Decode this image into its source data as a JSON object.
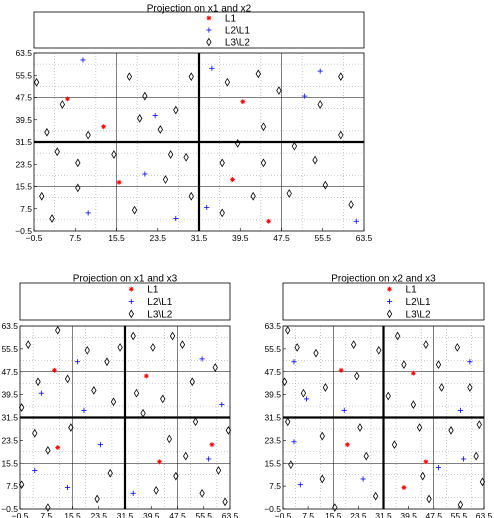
{
  "colors": {
    "L1": "#ff0000",
    "L2\\L1": "#0000ff",
    "L3\\L2": "#000000"
  },
  "chart_data": [
    {
      "type": "scatter",
      "title": "Projection on x1 and x2",
      "xlim": [
        -0.5,
        63.5
      ],
      "ylim": [
        -0.5,
        63.5
      ],
      "xticks": [
        "−0.5",
        "7.5",
        "15.5",
        "23.5",
        "31.5",
        "39.5",
        "47.5",
        "55.5",
        "63.5"
      ],
      "yticks": [
        "−0.5",
        "7.5",
        "15.5",
        "23.5",
        "31.5",
        "39.5",
        "47.5",
        "55.5",
        "63.5"
      ],
      "grid": true,
      "legend": {
        "position": "top",
        "entries": [
          "L1",
          "L2\\L1",
          "L3\\L2"
        ]
      },
      "series": [
        {
          "name": "L1",
          "marker": "asterisk",
          "points": [
            [
              13,
              37
            ],
            [
              16,
              17
            ],
            [
              6,
              47
            ],
            [
              40,
              46
            ],
            [
              38,
              18
            ],
            [
              45,
              3
            ]
          ]
        },
        {
          "name": "L2\\L1",
          "marker": "plus",
          "points": [
            [
              9,
              61
            ],
            [
              21,
              20
            ],
            [
              10,
              6
            ],
            [
              27,
              4
            ],
            [
              34,
              58
            ],
            [
              33,
              8
            ],
            [
              55,
              57
            ],
            [
              62,
              3
            ],
            [
              52,
              48
            ],
            [
              23,
              41
            ]
          ]
        },
        {
          "name": "L3\\L2",
          "marker": "diamond",
          "points": [
            [
              0,
              53
            ],
            [
              5,
              45
            ],
            [
              2,
              35
            ],
            [
              4,
              28
            ],
            [
              1,
              12
            ],
            [
              3,
              4
            ],
            [
              8,
              15
            ],
            [
              10,
              34
            ],
            [
              8,
              24
            ],
            [
              18,
              55
            ],
            [
              20,
              40
            ],
            [
              21,
              48
            ],
            [
              24,
              36
            ],
            [
              27,
              43
            ],
            [
              26,
              27
            ],
            [
              25,
              18
            ],
            [
              29,
              26
            ],
            [
              30,
              12
            ],
            [
              30,
              55
            ],
            [
              15,
              27
            ],
            [
              19,
              7
            ],
            [
              36,
              6
            ],
            [
              37,
              53
            ],
            [
              36,
              24
            ],
            [
              39,
              31
            ],
            [
              43,
              56
            ],
            [
              44,
              37
            ],
            [
              47,
              50
            ],
            [
              49,
              13
            ],
            [
              50,
              30
            ],
            [
              54,
              25
            ],
            [
              56,
              16
            ],
            [
              59,
              34
            ],
            [
              61,
              9
            ],
            [
              59,
              55
            ],
            [
              55,
              45
            ],
            [
              44,
              24
            ],
            [
              42,
              12
            ]
          ]
        }
      ]
    },
    {
      "type": "scatter",
      "title": "Projection on x1 and x3",
      "xlim": [
        -0.5,
        63.5
      ],
      "ylim": [
        -0.5,
        63.5
      ],
      "xticks": [
        "−0.5",
        "7.5",
        "15.5",
        "23.5",
        "31.5",
        "39.5",
        "47.5",
        "55.5",
        "63.5"
      ],
      "yticks": [
        "−0.5",
        "7.5",
        "15.5",
        "23.5",
        "31.5",
        "39.5",
        "47.5",
        "55.5",
        "63.5"
      ],
      "grid": true,
      "legend": {
        "position": "top",
        "entries": [
          "L1",
          "L2\\L1",
          "L3\\L2"
        ]
      },
      "series": [
        {
          "name": "L1",
          "marker": "asterisk",
          "points": [
            [
              10,
              48
            ],
            [
              38,
              46
            ],
            [
              42,
              16
            ],
            [
              11,
              21
            ],
            [
              58,
              22
            ]
          ]
        },
        {
          "name": "L2\\L1",
          "marker": "plus",
          "points": [
            [
              4,
              13
            ],
            [
              17,
              51
            ],
            [
              19,
              34
            ],
            [
              6,
              40
            ],
            [
              24,
              22
            ],
            [
              34,
              5
            ],
            [
              55,
              52
            ],
            [
              61,
              36
            ],
            [
              57,
              17
            ],
            [
              14,
              7
            ]
          ]
        },
        {
          "name": "L3\\L2",
          "marker": "diamond",
          "points": [
            [
              2,
              57
            ],
            [
              5,
              44
            ],
            [
              0,
              35
            ],
            [
              4,
              26
            ],
            [
              0,
              8
            ],
            [
              8,
              0
            ],
            [
              11,
              62
            ],
            [
              14,
              45
            ],
            [
              20,
              55
            ],
            [
              22,
              41
            ],
            [
              26,
              51
            ],
            [
              28,
              37
            ],
            [
              27,
              12
            ],
            [
              23,
              3
            ],
            [
              15,
              28
            ],
            [
              30,
              56
            ],
            [
              34,
              60
            ],
            [
              35,
              40
            ],
            [
              37,
              33
            ],
            [
              40,
              56
            ],
            [
              43,
              38
            ],
            [
              45,
              24
            ],
            [
              47,
              11
            ],
            [
              49,
              57
            ],
            [
              52,
              44
            ],
            [
              53,
              30
            ],
            [
              55,
              5
            ],
            [
              59,
              49
            ],
            [
              63,
              27
            ],
            [
              60,
              13
            ],
            [
              62,
              2
            ],
            [
              46,
              60
            ],
            [
              41,
              6
            ],
            [
              50,
              18
            ],
            [
              8,
              20
            ]
          ]
        }
      ]
    },
    {
      "type": "scatter",
      "title": "Projection on x2 and x3",
      "xlim": [
        -0.5,
        63.5
      ],
      "ylim": [
        -0.5,
        63.5
      ],
      "xticks": [
        "−0.5",
        "7.5",
        "15.5",
        "23.5",
        "31.5",
        "39.5",
        "47.5",
        "55.5",
        "63.5"
      ],
      "yticks": [
        "−0.5",
        "7.5",
        "15.5",
        "23.5",
        "31.5",
        "39.5",
        "47.5",
        "55.5",
        "63.5"
      ],
      "grid": true,
      "legend": {
        "position": "top",
        "entries": [
          "L1",
          "L2\\L1",
          "L3\\L2"
        ]
      },
      "series": [
        {
          "name": "L1",
          "marker": "asterisk",
          "points": [
            [
              18,
              48
            ],
            [
              20,
              22
            ],
            [
              41,
              47
            ],
            [
              45,
              16
            ],
            [
              38,
              7
            ]
          ]
        },
        {
          "name": "L2\\L1",
          "marker": "plus",
          "points": [
            [
              3,
              51
            ],
            [
              7,
              38
            ],
            [
              3,
              23
            ],
            [
              5,
              8
            ],
            [
              19,
              34
            ],
            [
              25,
              10
            ],
            [
              59,
              51
            ],
            [
              56,
              34
            ],
            [
              57,
              17
            ],
            [
              49,
              14
            ]
          ]
        },
        {
          "name": "L3\\L2",
          "marker": "diamond",
          "points": [
            [
              1,
              62
            ],
            [
              4,
              56
            ],
            [
              0,
              44
            ],
            [
              6,
              40
            ],
            [
              1,
              30
            ],
            [
              2,
              15
            ],
            [
              10,
              54
            ],
            [
              13,
              42
            ],
            [
              12,
              25
            ],
            [
              12,
              10
            ],
            [
              16,
              0
            ],
            [
              22,
              57
            ],
            [
              23,
              46
            ],
            [
              24,
              28
            ],
            [
              26,
              18
            ],
            [
              29,
              4
            ],
            [
              30,
              55
            ],
            [
              33,
              39
            ],
            [
              35,
              22
            ],
            [
              36,
              60
            ],
            [
              38,
              50
            ],
            [
              41,
              36
            ],
            [
              43,
              28
            ],
            [
              44,
              11
            ],
            [
              45,
              57
            ],
            [
              49,
              50
            ],
            [
              50,
              42
            ],
            [
              53,
              27
            ],
            [
              55,
              56
            ],
            [
              59,
              42
            ],
            [
              62,
              29
            ],
            [
              61,
              18
            ],
            [
              63,
              9
            ],
            [
              56,
              1
            ],
            [
              46,
              3
            ]
          ]
        }
      ]
    }
  ]
}
